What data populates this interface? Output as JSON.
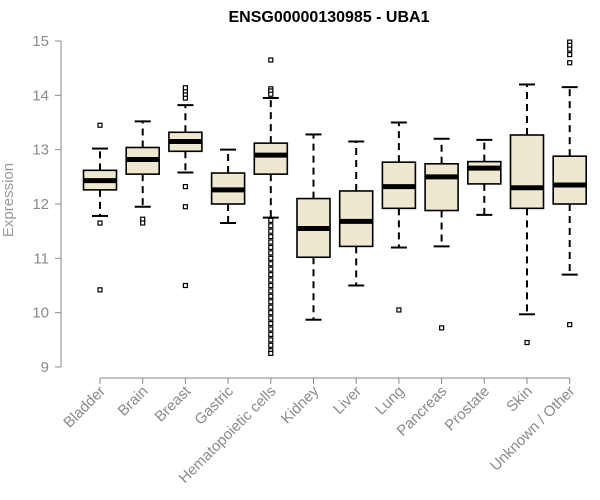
{
  "chart_data": {
    "type": "boxplot",
    "title": "ENSG00000130985 - UBA1",
    "xlabel": "",
    "ylabel": "Expression",
    "ylim": [
      9,
      15
    ],
    "yticks": [
      9,
      10,
      11,
      12,
      13,
      14,
      15
    ],
    "box_fill": "#eee8d0",
    "categories": [
      "Bladder",
      "Brain",
      "Breast",
      "Gastric",
      "Hematopoietic cells",
      "Kidney",
      "Liver",
      "Lung",
      "Pancreas",
      "Prostate",
      "Skin",
      "Unknown / Other"
    ],
    "boxes": [
      {
        "name": "Bladder",
        "whisker_low": 11.78,
        "q1": 12.26,
        "median": 12.43,
        "q3": 12.62,
        "whisker_high": 13.02,
        "outliers": [
          13.45,
          11.65,
          10.42
        ]
      },
      {
        "name": "Brain",
        "whisker_low": 11.95,
        "q1": 12.55,
        "median": 12.82,
        "q3": 13.04,
        "whisker_high": 13.52,
        "outliers": [
          11.72,
          11.65
        ]
      },
      {
        "name": "Breast",
        "whisker_low": 12.58,
        "q1": 12.97,
        "median": 13.15,
        "q3": 13.32,
        "whisker_high": 13.82,
        "outliers": [
          13.95,
          14.02,
          14.08,
          14.14,
          12.32,
          11.95,
          10.5
        ]
      },
      {
        "name": "Gastric",
        "whisker_low": 11.65,
        "q1": 12.0,
        "median": 12.26,
        "q3": 12.57,
        "whisker_high": 13.0,
        "outliers": []
      },
      {
        "name": "Hematopoietic cells",
        "whisker_low": 11.75,
        "q1": 12.55,
        "median": 12.9,
        "q3": 13.12,
        "whisker_high": 13.95,
        "outliers": [
          14.65,
          14.12,
          14.08,
          14.02,
          11.7,
          11.6,
          11.5,
          11.4,
          11.3,
          11.2,
          11.1,
          11.0,
          10.9,
          10.8,
          10.7,
          10.6,
          10.5,
          10.4,
          10.3,
          10.2,
          10.1,
          10.0,
          9.9,
          9.8,
          9.7,
          9.6,
          9.5,
          9.4,
          9.3,
          9.25
        ]
      },
      {
        "name": "Kidney",
        "whisker_low": 9.87,
        "q1": 11.02,
        "median": 11.55,
        "q3": 12.1,
        "whisker_high": 13.28,
        "outliers": []
      },
      {
        "name": "Liver",
        "whisker_low": 10.5,
        "q1": 11.22,
        "median": 11.68,
        "q3": 12.24,
        "whisker_high": 13.15,
        "outliers": []
      },
      {
        "name": "Lung",
        "whisker_low": 11.2,
        "q1": 11.92,
        "median": 12.32,
        "q3": 12.77,
        "whisker_high": 13.5,
        "outliers": [
          10.05
        ]
      },
      {
        "name": "Pancreas",
        "whisker_low": 11.22,
        "q1": 11.88,
        "median": 12.5,
        "q3": 12.74,
        "whisker_high": 13.2,
        "outliers": [
          9.72
        ]
      },
      {
        "name": "Prostate",
        "whisker_low": 11.8,
        "q1": 12.37,
        "median": 12.66,
        "q3": 12.78,
        "whisker_high": 13.18,
        "outliers": []
      },
      {
        "name": "Skin",
        "whisker_low": 9.97,
        "q1": 11.92,
        "median": 12.3,
        "q3": 13.27,
        "whisker_high": 14.2,
        "outliers": [
          9.45
        ]
      },
      {
        "name": "Unknown / Other",
        "whisker_low": 10.7,
        "q1": 12.0,
        "median": 12.35,
        "q3": 12.88,
        "whisker_high": 14.15,
        "outliers": [
          14.98,
          14.92,
          14.85,
          14.75,
          14.6,
          9.78
        ]
      }
    ]
  }
}
